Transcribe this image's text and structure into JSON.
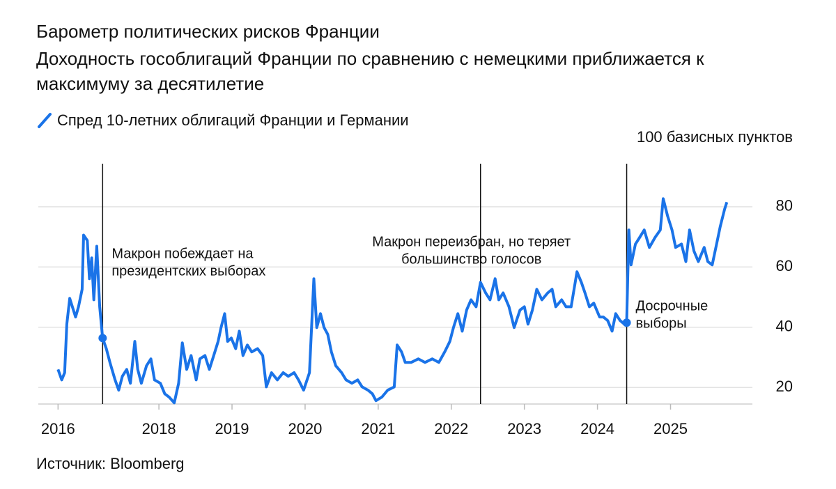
{
  "chart_data": {
    "type": "line",
    "title": "Барометр политических рисков Франции",
    "subtitle": [
      "Доходность гособлигаций Франции по сравнению с немецкими приближается к",
      "максимуму за десятилетие"
    ],
    "y_label": "100 базисных пунктов",
    "source": "Источник: Bloomberg",
    "xlim": [
      2016.35,
      2026.12
    ],
    "xticks": [
      {
        "value": 2016.62,
        "label": "2016"
      },
      2018,
      2019,
      2020,
      2021,
      2022,
      2023,
      2024,
      2025
    ],
    "ylim": [
      14.5,
      94.3
    ],
    "yticks": [
      20,
      40,
      60,
      80
    ],
    "grid": true,
    "x": [
      2016.62,
      2016.67,
      2016.71,
      2016.74,
      2016.78,
      2016.86,
      2016.9,
      2016.95,
      2016.97,
      2017.02,
      2017.05,
      2017.08,
      2017.11,
      2017.15,
      2017.19,
      2017.23,
      2017.28,
      2017.33,
      2017.4,
      2017.45,
      2017.5,
      2017.56,
      2017.61,
      2017.67,
      2017.71,
      2017.76,
      2017.83,
      2017.89,
      2017.94,
      2018.02,
      2018.08,
      2018.14,
      2018.21,
      2018.27,
      2018.32,
      2018.38,
      2018.44,
      2018.51,
      2018.56,
      2018.63,
      2018.69,
      2018.75,
      2018.81,
      2018.85,
      2018.9,
      2018.94,
      2018.99,
      2019.05,
      2019.1,
      2019.15,
      2019.21,
      2019.27,
      2019.35,
      2019.42,
      2019.47,
      2019.54,
      2019.62,
      2019.7,
      2019.77,
      2019.85,
      2019.91,
      2019.98,
      2020.06,
      2020.12,
      2020.16,
      2020.21,
      2020.26,
      2020.31,
      2020.36,
      2020.42,
      2020.5,
      2020.56,
      2020.64,
      2020.72,
      2020.78,
      2020.86,
      2020.92,
      2020.97,
      2021.05,
      2021.13,
      2021.22,
      2021.26,
      2021.32,
      2021.37,
      2021.45,
      2021.55,
      2021.64,
      2021.74,
      2021.83,
      2021.91,
      2021.98,
      2022.03,
      2022.09,
      2022.15,
      2022.21,
      2022.27,
      2022.34,
      2022.4,
      2022.47,
      2022.53,
      2022.6,
      2022.65,
      2022.71,
      2022.79,
      2022.86,
      2022.94,
      2023.0,
      2023.05,
      2023.11,
      2023.17,
      2023.24,
      2023.32,
      2023.38,
      2023.43,
      2023.51,
      2023.57,
      2023.64,
      2023.72,
      2023.78,
      2023.83,
      2023.89,
      2023.95,
      2024.03,
      2024.08,
      2024.14,
      2024.2,
      2024.25,
      2024.31,
      2024.37,
      2024.4,
      2024.43,
      2024.46,
      2024.52,
      2024.58,
      2024.64,
      2024.71,
      2024.79,
      2024.86,
      2024.9,
      2024.96,
      2025.02,
      2025.07,
      2025.15,
      2025.21,
      2025.26,
      2025.32,
      2025.38,
      2025.46,
      2025.51,
      2025.57,
      2025.63,
      2025.68,
      2025.74,
      2025.77
    ],
    "series": [
      {
        "name": "Спред 10-летних облигаций Франции и Германии",
        "color": "#1a73e8",
        "values": [
          26.0,
          22.5,
          24.9,
          41.0,
          49.6,
          43.4,
          46.8,
          52.6,
          70.6,
          68.8,
          56.1,
          63.0,
          49.1,
          66.9,
          46.8,
          36.4,
          32.9,
          28.3,
          22.5,
          19.1,
          23.7,
          26.0,
          21.4,
          35.3,
          26.0,
          21.4,
          27.2,
          29.5,
          22.5,
          21.4,
          17.9,
          16.8,
          14.9,
          21.4,
          34.8,
          26.0,
          30.6,
          22.5,
          29.5,
          30.6,
          26.0,
          30.6,
          35.3,
          39.9,
          44.5,
          35.3,
          36.4,
          32.9,
          38.7,
          30.6,
          34.1,
          31.8,
          32.9,
          30.6,
          20.2,
          24.9,
          22.5,
          24.9,
          23.7,
          24.9,
          22.5,
          19.1,
          24.9,
          56.1,
          39.9,
          44.5,
          39.9,
          37.6,
          31.8,
          27.2,
          24.9,
          22.5,
          21.4,
          22.5,
          20.2,
          19.1,
          17.9,
          15.6,
          16.8,
          19.1,
          20.2,
          34.1,
          31.8,
          28.3,
          28.3,
          29.5,
          28.3,
          29.5,
          28.3,
          31.8,
          35.3,
          39.9,
          44.5,
          38.7,
          45.7,
          49.1,
          46.8,
          54.9,
          51.4,
          49.1,
          56.1,
          49.1,
          51.4,
          46.8,
          39.9,
          45.7,
          46.8,
          41.0,
          45.7,
          52.6,
          49.1,
          51.4,
          52.6,
          46.8,
          49.1,
          46.8,
          46.8,
          58.4,
          54.9,
          51.4,
          46.8,
          48.0,
          43.4,
          43.4,
          42.2,
          38.7,
          44.5,
          42.2,
          41.0,
          41.5,
          72.3,
          60.7,
          67.6,
          69.9,
          72.3,
          66.5,
          69.9,
          72.3,
          82.7,
          76.9,
          72.3,
          66.5,
          67.6,
          61.8,
          72.3,
          65.3,
          61.8,
          66.5,
          61.8,
          60.7,
          67.6,
          73.4,
          79.2,
          81.5
        ]
      }
    ],
    "annotations": [
      {
        "x": 2017.23,
        "text": [
          "Макрон побеждает на",
          "президентских выборах"
        ],
        "marker": true
      },
      {
        "x": 2022.4,
        "text": [
          "Макрон переизбран, но теряет",
          "большинство голосов"
        ],
        "marker": false
      },
      {
        "x": 2024.4,
        "text": [
          "Досрочные",
          "выборы"
        ],
        "marker": true
      }
    ]
  }
}
